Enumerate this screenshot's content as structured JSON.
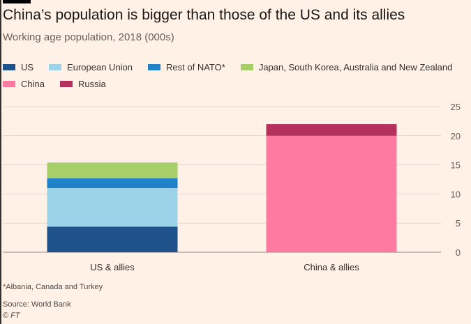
{
  "header": {
    "title": "China’s population is bigger than those of the US and its allies",
    "subtitle": "Working age population, 2018 (000s)"
  },
  "chart_data": {
    "type": "bar",
    "stacked": true,
    "categories": [
      "US & allies",
      "China & allies"
    ],
    "series": [
      {
        "name": "US",
        "color": "#1f518b",
        "values": [
          4.4,
          0
        ]
      },
      {
        "name": "European Union",
        "color": "#9dd3e8",
        "values": [
          6.6,
          0
        ]
      },
      {
        "name": "Rest of NATO*",
        "color": "#2181c9",
        "values": [
          1.7,
          0
        ]
      },
      {
        "name": "Japan, South Korea, Australia and New Zealand",
        "color": "#a6cf6a",
        "values": [
          2.7,
          0
        ]
      },
      {
        "name": "China",
        "color": "#ff7aa0",
        "values": [
          0,
          20.0
        ]
      },
      {
        "name": "Russia",
        "color": "#b5305c",
        "values": [
          0,
          2.0
        ]
      }
    ],
    "ylim": [
      0,
      25
    ],
    "yticks": [
      "0",
      "5",
      "10",
      "15",
      "20",
      "25"
    ],
    "xlabel": "",
    "ylabel": "",
    "grid": true,
    "legend_position": "top-left",
    "yaxis_position": "right"
  },
  "footer": {
    "footnote": "*Albania, Canada and Turkey",
    "source": "Source: World Bank",
    "credit": "© FT"
  }
}
